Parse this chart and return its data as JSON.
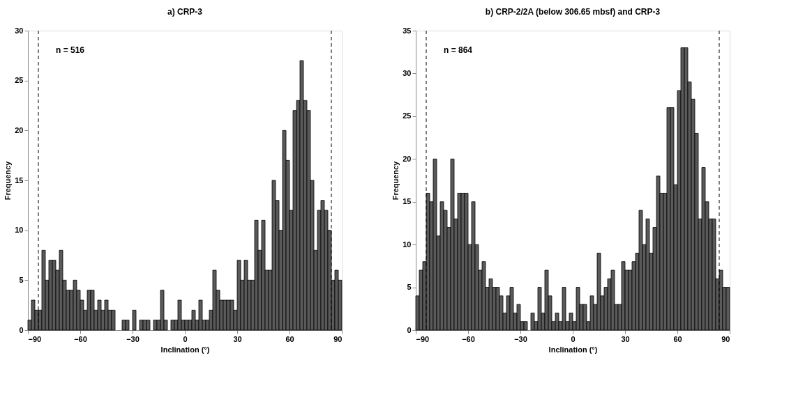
{
  "chart_data": [
    {
      "type": "histogram",
      "title": "a)  CRP-3",
      "xlabel": "Inclination (°)",
      "ylabel": "Frequency",
      "color": "#5a5a5a",
      "bins": [
        -90,
        -88,
        -86,
        -84,
        -82,
        -80,
        -78,
        -76,
        -74,
        -72,
        -70,
        -68,
        -66,
        -64,
        -62,
        -60,
        -58,
        -56,
        -54,
        -52,
        -50,
        -48,
        -46,
        -44,
        -42,
        -40,
        -38,
        -36,
        -34,
        -32,
        -30,
        -28,
        -26,
        -24,
        -22,
        -20,
        -18,
        -16,
        -14,
        -12,
        -10,
        -8,
        -6,
        -4,
        -2,
        0,
        2,
        4,
        6,
        8,
        10,
        12,
        14,
        16,
        18,
        20,
        22,
        24,
        26,
        28,
        30,
        32,
        34,
        36,
        38,
        40,
        42,
        44,
        46,
        48,
        50,
        52,
        54,
        56,
        58,
        60,
        62,
        64,
        66,
        68,
        70,
        72,
        74,
        76,
        78,
        80,
        82,
        84,
        86,
        88,
        90
      ],
      "values": [
        1,
        3,
        2,
        2,
        8,
        5,
        7,
        7,
        6,
        8,
        5,
        4,
        4,
        5,
        4,
        3,
        2,
        4,
        4,
        2,
        3,
        2,
        3,
        2,
        2,
        0,
        0,
        1,
        1,
        0,
        2,
        0,
        1,
        1,
        1,
        0,
        1,
        1,
        4,
        1,
        0,
        1,
        1,
        3,
        1,
        1,
        1,
        2,
        1,
        3,
        1,
        1,
        2,
        6,
        4,
        3,
        3,
        3,
        3,
        2,
        7,
        5,
        7,
        5,
        5,
        11,
        8,
        11,
        6,
        6,
        15,
        13,
        10,
        20,
        17,
        12,
        22,
        23,
        27,
        23,
        22,
        15,
        8,
        12,
        13,
        12,
        10,
        5,
        6,
        5
      ],
      "xlim": [
        -90,
        90
      ],
      "xticks": [
        -90,
        -60,
        -30,
        0,
        30,
        60,
        90
      ],
      "ylim": [
        0,
        30
      ],
      "yticks": [
        0,
        5,
        10,
        15,
        20,
        25,
        30
      ],
      "grid": false,
      "ref_lines": [
        {
          "axis": "x",
          "value": -84,
          "line_style": "dashed"
        },
        {
          "axis": "x",
          "value": 84,
          "line_style": "dashed"
        }
      ],
      "annotations": [
        "n = 516"
      ]
    },
    {
      "type": "histogram",
      "title": "b)  CRP-2/2A  (below 306.65 mbsf)  and  CRP-3",
      "xlabel": "Inclination (°)",
      "ylabel": "Frequency",
      "color": "#5a5a5a",
      "bins": [
        -90,
        -88,
        -86,
        -84,
        -82,
        -80,
        -78,
        -76,
        -74,
        -72,
        -70,
        -68,
        -66,
        -64,
        -62,
        -60,
        -58,
        -56,
        -54,
        -52,
        -50,
        -48,
        -46,
        -44,
        -42,
        -40,
        -38,
        -36,
        -34,
        -32,
        -30,
        -28,
        -26,
        -24,
        -22,
        -20,
        -18,
        -16,
        -14,
        -12,
        -10,
        -8,
        -6,
        -4,
        -2,
        0,
        2,
        4,
        6,
        8,
        10,
        12,
        14,
        16,
        18,
        20,
        22,
        24,
        26,
        28,
        30,
        32,
        34,
        36,
        38,
        40,
        42,
        44,
        46,
        48,
        50,
        52,
        54,
        56,
        58,
        60,
        62,
        64,
        66,
        68,
        70,
        72,
        74,
        76,
        78,
        80,
        82,
        84,
        86,
        88,
        90
      ],
      "values": [
        4,
        7,
        8,
        16,
        15,
        20,
        11,
        15,
        14,
        12,
        20,
        13,
        16,
        16,
        16,
        10,
        15,
        10,
        7,
        8,
        5,
        6,
        5,
        5,
        4,
        2,
        4,
        5,
        2,
        3,
        1,
        1,
        0,
        2,
        1,
        5,
        2,
        7,
        4,
        1,
        2,
        1,
        5,
        1,
        2,
        1,
        5,
        3,
        3,
        1,
        4,
        3,
        9,
        4,
        5,
        6,
        7,
        3,
        3,
        8,
        7,
        7,
        8,
        9,
        14,
        10,
        13,
        9,
        12,
        18,
        16,
        16,
        26,
        26,
        17,
        28,
        33,
        33,
        29,
        27,
        23,
        13,
        19,
        15,
        13,
        13,
        6,
        7,
        5,
        5
      ],
      "xlim": [
        -90,
        90
      ],
      "xticks": [
        -90,
        -60,
        -30,
        0,
        30,
        60,
        90
      ],
      "ylim": [
        0,
        35
      ],
      "yticks": [
        0,
        5,
        10,
        15,
        20,
        25,
        30,
        35
      ],
      "grid": false,
      "ref_lines": [
        {
          "axis": "x",
          "value": -84,
          "line_style": "dashed"
        },
        {
          "axis": "x",
          "value": 84,
          "line_style": "dashed"
        }
      ],
      "annotations": [
        "n = 864"
      ]
    }
  ]
}
